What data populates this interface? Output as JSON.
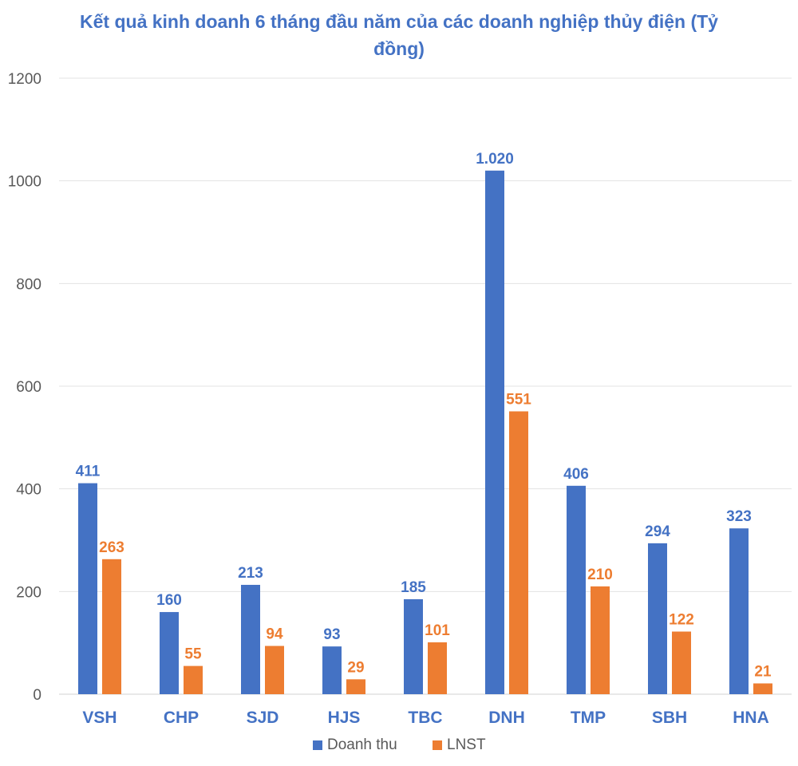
{
  "chart_data": {
    "type": "bar",
    "title": "Kết quả kinh doanh 6 tháng đầu năm của các doanh nghiệp thủy điện (Tỷ đồng)",
    "categories": [
      "VSH",
      "CHP",
      "SJD",
      "HJS",
      "TBC",
      "DNH",
      "TMP",
      "SBH",
      "HNA"
    ],
    "series": [
      {
        "name": "Doanh thu",
        "color": "#4472C4",
        "values": [
          411,
          160,
          213,
          93,
          185,
          1020,
          406,
          294,
          323
        ],
        "labels": [
          "411",
          "160",
          "213",
          "93",
          "185",
          "1.020",
          "406",
          "294",
          "323"
        ]
      },
      {
        "name": "LNST",
        "color": "#ED7D31",
        "values": [
          263,
          55,
          94,
          29,
          101,
          551,
          210,
          122,
          21
        ],
        "labels": [
          "263",
          "55",
          "94",
          "29",
          "101",
          "551",
          "210",
          "122",
          "21"
        ]
      }
    ],
    "ylim": [
      0,
      1200
    ],
    "yticks": [
      0,
      200,
      400,
      600,
      800,
      1000,
      1200
    ],
    "grid": true,
    "legend": "bottom"
  }
}
